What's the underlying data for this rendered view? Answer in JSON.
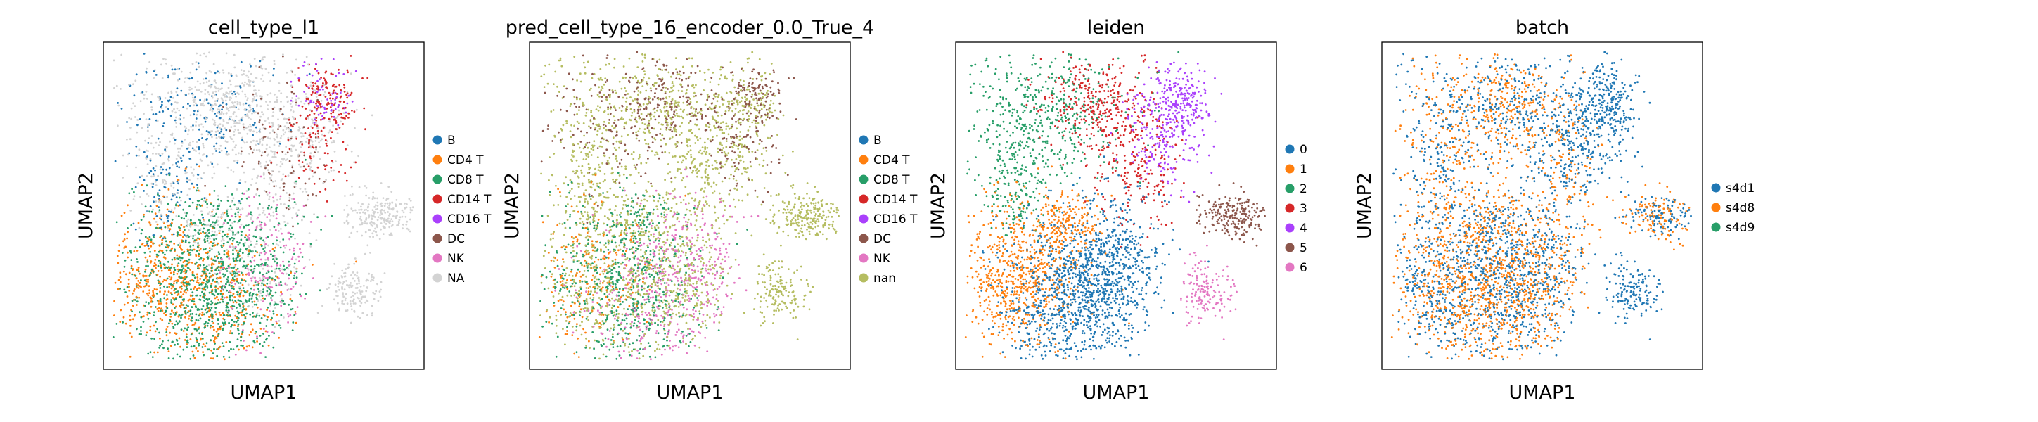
{
  "chart_data": [
    {
      "type": "scatter",
      "title": "cell_type_l1",
      "xlabel": "UMAP1",
      "ylabel": "UMAP2",
      "legend_position": "right",
      "legend": [
        {
          "label": "B",
          "color": "#1f77b4"
        },
        {
          "label": "CD4 T",
          "color": "#ff7f0e"
        },
        {
          "label": "CD8 T",
          "color": "#279e68"
        },
        {
          "label": "CD14 T",
          "color": "#d62728"
        },
        {
          "label": "CD16 T",
          "color": "#aa40fc"
        },
        {
          "label": "DC",
          "color": "#8c564b"
        },
        {
          "label": "NK",
          "color": "#e377c2"
        },
        {
          "label": "NA",
          "color": "#d3d3d3"
        }
      ],
      "regions": [
        {
          "label": "B",
          "share": 0.09
        },
        {
          "label": "CD4 T",
          "share": 0.1
        },
        {
          "label": "CD8 T",
          "share": 0.2
        },
        {
          "label": "CD14 T",
          "share": 0.06
        },
        {
          "label": "CD16 T",
          "share": 0.02
        },
        {
          "label": "DC",
          "share": 0.04
        },
        {
          "label": "NK",
          "share": 0.05
        },
        {
          "label": "NA",
          "share": 0.44
        }
      ]
    },
    {
      "type": "scatter",
      "title": "pred_cell_type_16_encoder_0.0_True_4",
      "xlabel": "UMAP1",
      "ylabel": "UMAP2",
      "legend_position": "right",
      "legend": [
        {
          "label": "B",
          "color": "#1f77b4"
        },
        {
          "label": "CD4 T",
          "color": "#ff7f0e"
        },
        {
          "label": "CD8 T",
          "color": "#279e68"
        },
        {
          "label": "CD14 T",
          "color": "#d62728"
        },
        {
          "label": "CD16 T",
          "color": "#aa40fc"
        },
        {
          "label": "DC",
          "color": "#8c564b"
        },
        {
          "label": "NK",
          "color": "#e377c2"
        },
        {
          "label": "nan",
          "color": "#b5bd61"
        }
      ]
    },
    {
      "type": "scatter",
      "title": "leiden",
      "xlabel": "UMAP1",
      "ylabel": "UMAP2",
      "legend_position": "right",
      "legend": [
        {
          "label": "0",
          "color": "#1f77b4"
        },
        {
          "label": "1",
          "color": "#ff7f0e"
        },
        {
          "label": "2",
          "color": "#279e68"
        },
        {
          "label": "3",
          "color": "#d62728"
        },
        {
          "label": "4",
          "color": "#aa40fc"
        },
        {
          "label": "5",
          "color": "#8c564b"
        },
        {
          "label": "6",
          "color": "#e377c2"
        }
      ]
    },
    {
      "type": "scatter",
      "title": "batch",
      "xlabel": "UMAP1",
      "ylabel": "UMAP2",
      "legend_position": "right",
      "legend": [
        {
          "label": "s4d1",
          "color": "#1f77b4"
        },
        {
          "label": "s4d8",
          "color": "#ff7f0e"
        },
        {
          "label": "s4d9",
          "color": "#279e68"
        }
      ]
    }
  ]
}
